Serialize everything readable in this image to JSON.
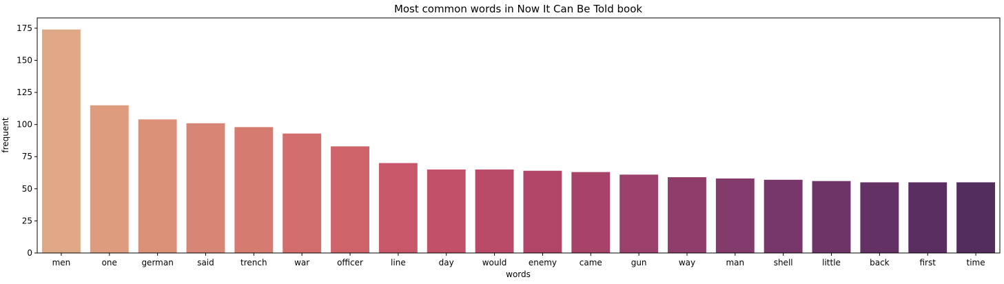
{
  "chart_data": {
    "type": "bar",
    "title": "Most common words in Now It Can Be Told book",
    "xlabel": "words",
    "ylabel": "frequent",
    "ylim": [
      0,
      183
    ],
    "yticks": [
      0,
      25,
      50,
      75,
      100,
      125,
      150,
      175
    ],
    "grid": false,
    "categories": [
      "men",
      "one",
      "german",
      "said",
      "trench",
      "war",
      "officer",
      "line",
      "day",
      "would",
      "enemy",
      "came",
      "gun",
      "way",
      "man",
      "shell",
      "little",
      "back",
      "first",
      "time"
    ],
    "values": [
      174,
      115,
      104,
      101,
      98,
      93,
      83,
      70,
      65,
      65,
      64,
      63,
      61,
      59,
      58,
      57,
      56,
      55,
      55,
      55
    ],
    "colors": [
      "#e0a886",
      "#dd9c7e",
      "#da9178",
      "#d78574",
      "#d57b70",
      "#d26f6c",
      "#ce636a",
      "#c85869",
      "#c25068",
      "#b94a68",
      "#b04568",
      "#a74369",
      "#9b406b",
      "#8f3e6b",
      "#833b6b",
      "#78376a",
      "#6e3468",
      "#643165",
      "#5b2e61",
      "#522d5e"
    ]
  }
}
